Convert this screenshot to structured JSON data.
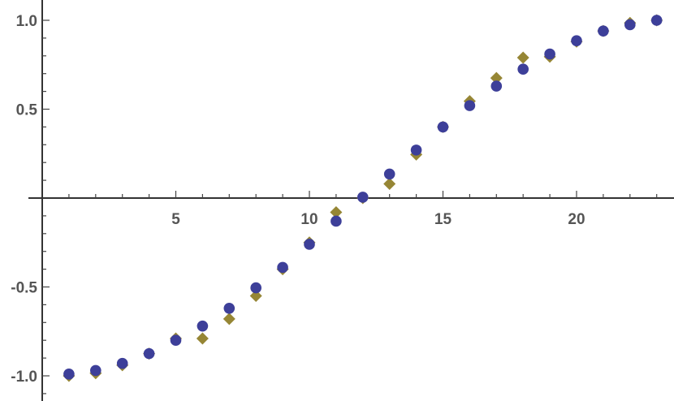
{
  "chart_data": {
    "type": "scatter",
    "title": "",
    "xlabel": "",
    "ylabel": "",
    "xlim": [
      0,
      23.2
    ],
    "ylim": [
      -1.12,
      1.1
    ],
    "x_major_ticks": [
      5,
      10,
      15,
      20
    ],
    "x_tick_labels": [
      "5",
      "10",
      "15",
      "20"
    ],
    "y_major_ticks": [
      -1.0,
      -0.5,
      0.5,
      1.0
    ],
    "y_tick_labels": [
      "-1.0",
      "-0.5",
      "0.5",
      "1.0"
    ],
    "grid": false,
    "series": [
      {
        "marker": "diamond",
        "color": "#968635",
        "x": [
          1,
          2,
          3,
          4,
          5,
          6,
          7,
          8,
          9,
          10,
          11,
          12,
          13,
          14,
          15,
          16,
          17,
          18,
          19,
          20,
          21,
          22,
          23
        ],
        "y": [
          -1.0,
          -0.985,
          -0.94,
          -0.875,
          -0.79,
          -0.79,
          -0.68,
          -0.55,
          -0.4,
          -0.25,
          -0.08,
          0.0,
          0.08,
          0.245,
          0.4,
          0.545,
          0.675,
          0.79,
          0.795,
          0.88,
          0.94,
          0.985,
          1.0
        ]
      },
      {
        "marker": "circle",
        "color": "#3d3f99",
        "x": [
          1,
          2,
          3,
          4,
          5,
          6,
          7,
          8,
          9,
          10,
          11,
          12,
          13,
          14,
          15,
          16,
          17,
          18,
          19,
          20,
          21,
          22,
          23
        ],
        "y": [
          -0.99,
          -0.97,
          -0.93,
          -0.875,
          -0.8,
          -0.72,
          -0.62,
          -0.505,
          -0.39,
          -0.26,
          -0.13,
          0.005,
          0.135,
          0.27,
          0.4,
          0.52,
          0.63,
          0.725,
          0.81,
          0.885,
          0.94,
          0.975,
          1.0
        ]
      }
    ]
  }
}
